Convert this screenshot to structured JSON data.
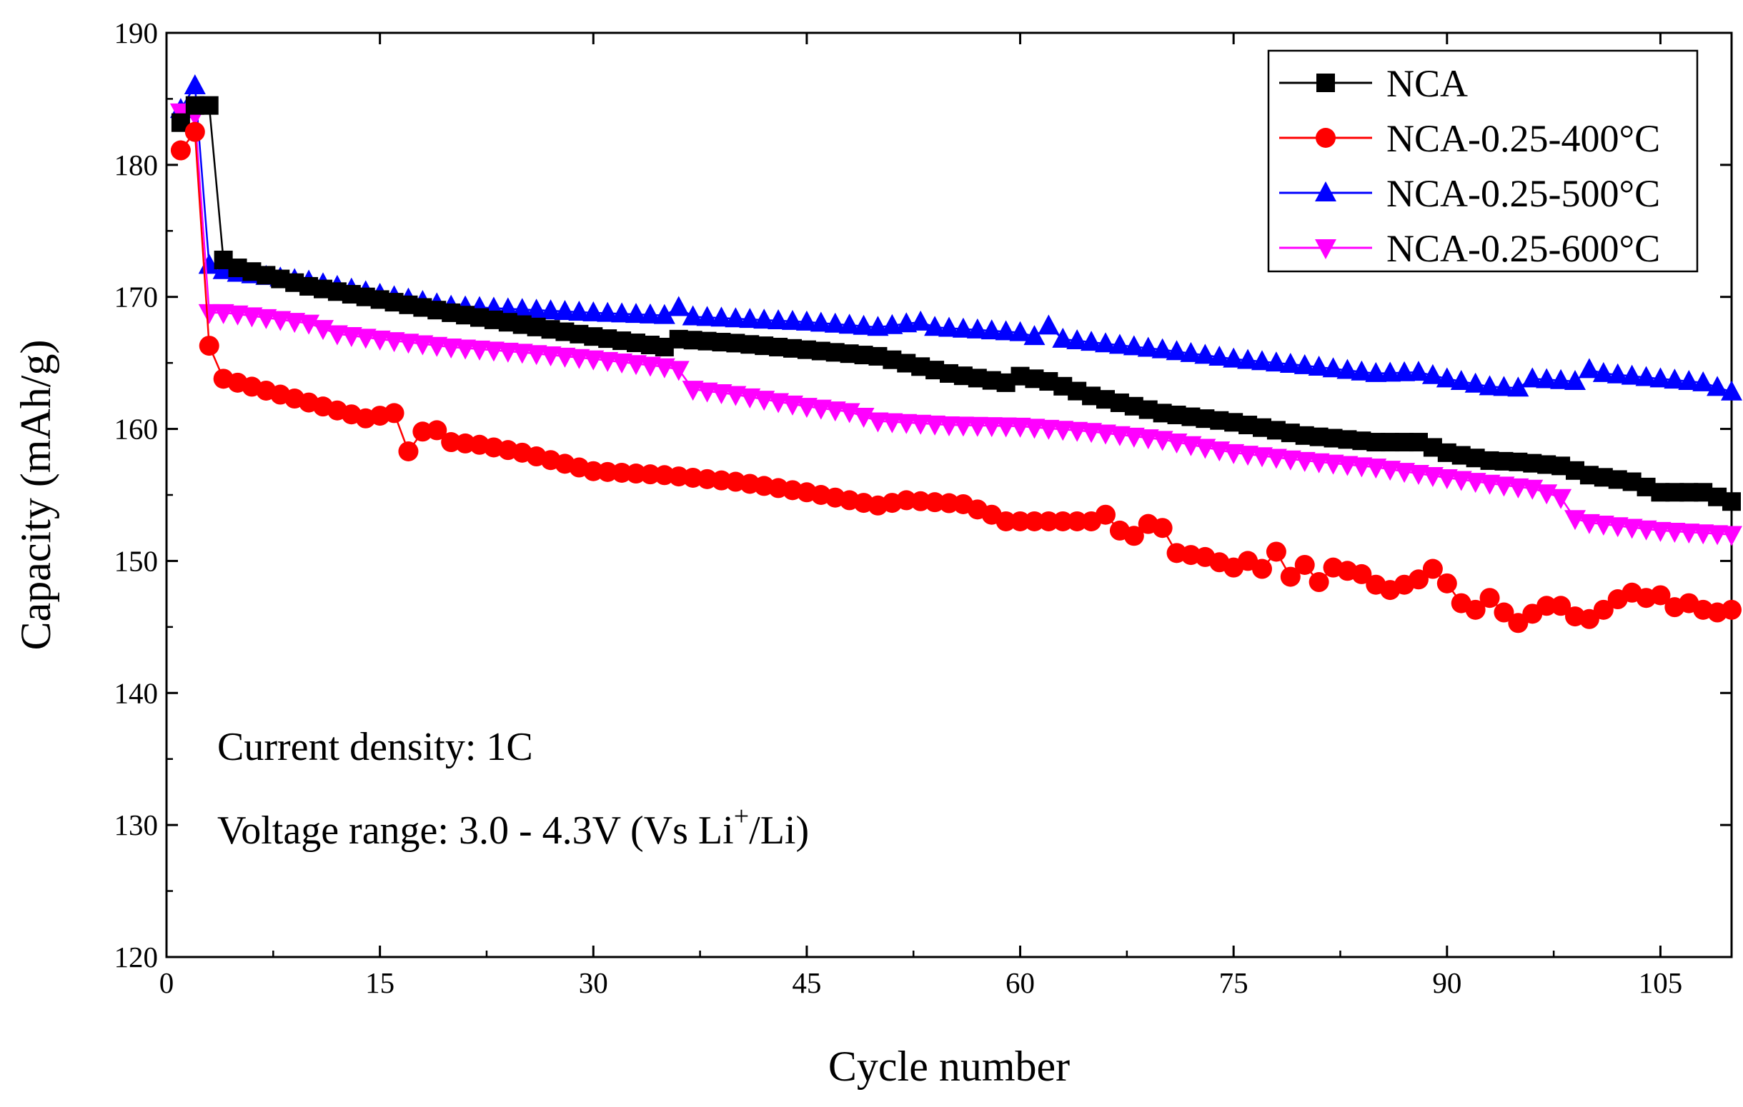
{
  "chart_data": {
    "type": "line",
    "title": "",
    "xlabel": "Cycle number",
    "ylabel": "Capacity (mAh/g)",
    "xlim": [
      0,
      110
    ],
    "ylim": [
      120,
      190
    ],
    "xticks": [
      0,
      15,
      30,
      45,
      60,
      75,
      90,
      105
    ],
    "xtick_labels": [
      "0",
      "15",
      "30",
      "45",
      "60",
      "75",
      "90",
      "105"
    ],
    "yticks": [
      120,
      130,
      140,
      150,
      160,
      170,
      180,
      190
    ],
    "ytick_labels": [
      "120",
      "130",
      "140",
      "150",
      "160",
      "170",
      "180",
      "190"
    ],
    "legend_position": "top-right",
    "annotations": {
      "current_density": "Current density: 1C",
      "voltage_prefix": "Voltage range: 3.0 - 4.3V (Vs Li",
      "voltage_sup": "+",
      "voltage_suffix": "/Li)"
    },
    "series_anchors": [
      {
        "name": "NCA",
        "color": "#000000",
        "marker": "square",
        "points": [
          [
            1,
            183.2
          ],
          [
            2,
            184.5
          ],
          [
            3,
            184.5
          ],
          [
            4,
            172.8
          ],
          [
            5,
            172.2
          ],
          [
            10,
            170.8
          ],
          [
            20,
            168.8
          ],
          [
            30,
            167.0
          ],
          [
            35,
            166.2
          ],
          [
            36,
            166.8
          ],
          [
            40,
            166.5
          ],
          [
            45,
            166.0
          ],
          [
            50,
            165.5
          ],
          [
            55,
            164.2
          ],
          [
            59,
            163.5
          ],
          [
            60,
            164.0
          ],
          [
            62,
            163.6
          ],
          [
            65,
            162.5
          ],
          [
            70,
            161.2
          ],
          [
            75,
            160.5
          ],
          [
            80,
            159.5
          ],
          [
            85,
            159.0
          ],
          [
            88,
            159.0
          ],
          [
            90,
            158.2
          ],
          [
            93,
            157.6
          ],
          [
            95,
            157.5
          ],
          [
            98,
            157.2
          ],
          [
            100,
            156.5
          ],
          [
            103,
            156.0
          ],
          [
            105,
            155.2
          ],
          [
            108,
            155.2
          ],
          [
            110,
            154.5
          ]
        ]
      },
      {
        "name": "NCA-0.25-400°C",
        "color": "#ff0000",
        "marker": "circle",
        "points": [
          [
            1,
            181.1
          ],
          [
            2,
            182.5
          ],
          [
            3,
            166.3
          ],
          [
            4,
            163.8
          ],
          [
            5,
            163.5
          ],
          [
            10,
            162.0
          ],
          [
            14,
            160.8
          ],
          [
            15,
            161.0
          ],
          [
            16,
            161.2
          ],
          [
            17,
            158.3
          ],
          [
            18,
            159.8
          ],
          [
            19,
            159.9
          ],
          [
            20,
            159.0
          ],
          [
            22,
            158.8
          ],
          [
            25,
            158.2
          ],
          [
            30,
            156.8
          ],
          [
            35,
            156.5
          ],
          [
            40,
            156.0
          ],
          [
            45,
            155.2
          ],
          [
            50,
            154.2
          ],
          [
            52,
            154.6
          ],
          [
            56,
            154.3
          ],
          [
            58,
            153.5
          ],
          [
            59,
            153.0
          ],
          [
            65,
            153.0
          ],
          [
            66,
            153.5
          ],
          [
            67,
            152.3
          ],
          [
            68,
            151.9
          ],
          [
            69,
            152.8
          ],
          [
            70,
            152.5
          ],
          [
            71,
            150.6
          ],
          [
            73,
            150.3
          ],
          [
            75,
            149.5
          ],
          [
            76,
            150.0
          ],
          [
            77,
            149.4
          ],
          [
            78,
            150.7
          ],
          [
            79,
            148.8
          ],
          [
            80,
            149.7
          ],
          [
            81,
            148.4
          ],
          [
            82,
            149.5
          ],
          [
            84,
            149.0
          ],
          [
            85,
            148.2
          ],
          [
            86,
            147.8
          ],
          [
            88,
            148.6
          ],
          [
            89,
            149.4
          ],
          [
            90,
            148.3
          ],
          [
            91,
            146.8
          ],
          [
            92,
            146.3
          ],
          [
            93,
            147.2
          ],
          [
            94,
            146.1
          ],
          [
            95,
            145.3
          ],
          [
            96,
            146.0
          ],
          [
            97,
            146.6
          ],
          [
            98,
            146.6
          ],
          [
            99,
            145.8
          ],
          [
            100,
            145.6
          ],
          [
            101,
            146.3
          ],
          [
            102,
            147.1
          ],
          [
            103,
            147.6
          ],
          [
            104,
            147.2
          ],
          [
            105,
            147.4
          ],
          [
            106,
            146.5
          ],
          [
            107,
            146.8
          ],
          [
            108,
            146.3
          ],
          [
            109,
            146.1
          ],
          [
            110,
            146.3
          ]
        ]
      },
      {
        "name": "NCA-0.25-500°C",
        "color": "#0000ff",
        "marker": "triangle-up",
        "points": [
          [
            1,
            184.2
          ],
          [
            2,
            186.0
          ],
          [
            3,
            172.4
          ],
          [
            4,
            172.0
          ],
          [
            5,
            171.8
          ],
          [
            10,
            171.2
          ],
          [
            15,
            170.2
          ],
          [
            20,
            169.3
          ],
          [
            30,
            168.8
          ],
          [
            35,
            168.6
          ],
          [
            36,
            169.2
          ],
          [
            37,
            168.5
          ],
          [
            45,
            168.1
          ],
          [
            50,
            167.7
          ],
          [
            53,
            168.1
          ],
          [
            54,
            167.7
          ],
          [
            60,
            167.3
          ],
          [
            61,
            167.0
          ],
          [
            62,
            167.8
          ],
          [
            63,
            166.8
          ],
          [
            70,
            166.0
          ],
          [
            75,
            165.3
          ],
          [
            80,
            164.8
          ],
          [
            85,
            164.2
          ],
          [
            88,
            164.3
          ],
          [
            90,
            163.8
          ],
          [
            93,
            163.2
          ],
          [
            95,
            163.1
          ],
          [
            96,
            163.8
          ],
          [
            99,
            163.6
          ],
          [
            100,
            164.5
          ],
          [
            101,
            164.2
          ],
          [
            105,
            163.8
          ],
          [
            108,
            163.5
          ],
          [
            110,
            162.8
          ]
        ]
      },
      {
        "name": "NCA-0.25-600°C",
        "color": "#ff00ff",
        "marker": "triangle-down",
        "points": [
          [
            1,
            184.0
          ],
          [
            2,
            183.8
          ],
          [
            3,
            168.8
          ],
          [
            4,
            168.8
          ],
          [
            5,
            168.7
          ],
          [
            10,
            168.0
          ],
          [
            12,
            167.2
          ],
          [
            15,
            166.8
          ],
          [
            20,
            166.2
          ],
          [
            25,
            165.8
          ],
          [
            30,
            165.3
          ],
          [
            35,
            164.7
          ],
          [
            36,
            164.5
          ],
          [
            37,
            163.0
          ],
          [
            40,
            162.6
          ],
          [
            45,
            161.7
          ],
          [
            48,
            161.3
          ],
          [
            50,
            160.6
          ],
          [
            55,
            160.3
          ],
          [
            60,
            160.2
          ],
          [
            65,
            159.8
          ],
          [
            70,
            159.2
          ],
          [
            75,
            158.2
          ],
          [
            80,
            157.6
          ],
          [
            85,
            157.1
          ],
          [
            90,
            156.3
          ],
          [
            95,
            155.6
          ],
          [
            96,
            155.5
          ],
          [
            98,
            154.8
          ],
          [
            99,
            153.2
          ],
          [
            100,
            152.9
          ],
          [
            105,
            152.3
          ],
          [
            110,
            152.0
          ]
        ]
      }
    ]
  }
}
